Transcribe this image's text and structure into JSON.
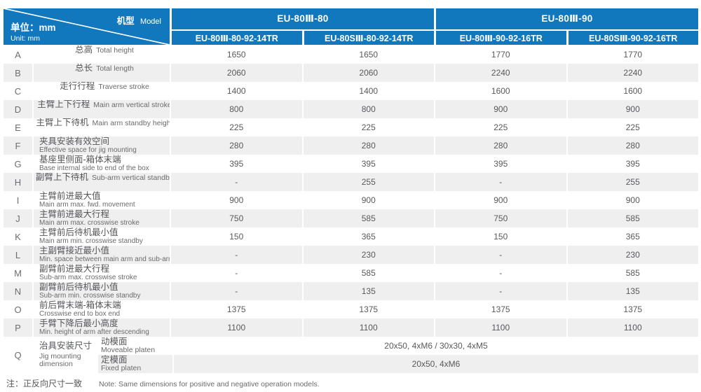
{
  "header": {
    "corner": {
      "model_zh": "机型",
      "model_en": "Model",
      "unit_zh": "单位：mm",
      "unit_en": "Unit: mm"
    },
    "groups": [
      {
        "label": "EU-80Ⅲ-80"
      },
      {
        "label": "EU-80Ⅲ-90"
      }
    ],
    "models": [
      "EU-80Ⅲ-80-92-14TR",
      "EU-80SⅢ-80-92-14TR",
      "EU-80Ⅲ-90-92-16TR",
      "EU-80SⅢ-90-92-16TR"
    ]
  },
  "rows": [
    {
      "letter": "A",
      "zh": "总高",
      "en": "Total height",
      "two": false,
      "values": [
        "1650",
        "1650",
        "1770",
        "1770"
      ]
    },
    {
      "letter": "B",
      "zh": "总长",
      "en": "Total length",
      "two": false,
      "values": [
        "2060",
        "2060",
        "2240",
        "2240"
      ]
    },
    {
      "letter": "C",
      "zh": "走行行程",
      "en": "Traverse stroke",
      "two": false,
      "values": [
        "1400",
        "1400",
        "1600",
        "1600"
      ]
    },
    {
      "letter": "D",
      "zh": "主臂上下行程",
      "en": "Main arm vertical stroke",
      "two": false,
      "values": [
        "800",
        "800",
        "900",
        "900"
      ]
    },
    {
      "letter": "E",
      "zh": "主臂上下待机",
      "en": "Main arm standby height",
      "two": false,
      "values": [
        "225",
        "225",
        "225",
        "225"
      ]
    },
    {
      "letter": "F",
      "zh": "夹具安装有效空间",
      "en": "Effective space for jig mounting",
      "two": true,
      "values": [
        "280",
        "280",
        "280",
        "280"
      ]
    },
    {
      "letter": "G",
      "zh": "基座里侧面-箱体末端",
      "en": "Base internal side to end of the box",
      "two": true,
      "values": [
        "395",
        "395",
        "395",
        "395"
      ]
    },
    {
      "letter": "H",
      "zh": "副臂上下待机",
      "en": "Sub-arm vertical standby",
      "two": false,
      "values": [
        "-",
        "255",
        "-",
        "255"
      ]
    },
    {
      "letter": "I",
      "zh": "主臂前进最大值",
      "en": "Main arm max. fwd. movement",
      "two": true,
      "values": [
        "900",
        "900",
        "900",
        "900"
      ]
    },
    {
      "letter": "J",
      "zh": "主臂前进最大行程",
      "en": "Main arm max. crosswise stroke",
      "two": true,
      "values": [
        "750",
        "585",
        "750",
        "585"
      ]
    },
    {
      "letter": "K",
      "zh": "主臂前后待机最小值",
      "en": "Main arm min. crosswise standby",
      "two": true,
      "values": [
        "150",
        "365",
        "150",
        "365"
      ]
    },
    {
      "letter": "L",
      "zh": "主副臂接近最小值",
      "en": "Min. space between main arm and sub-arm",
      "two": true,
      "values": [
        "-",
        "230",
        "-",
        "230"
      ]
    },
    {
      "letter": "M",
      "zh": "副臂前进最大行程",
      "en": "Sub-arm max. crosswise stroke",
      "two": true,
      "values": [
        "-",
        "585",
        "-",
        "585"
      ]
    },
    {
      "letter": "N",
      "zh": "副臂前后待机最小值",
      "en": "Sub-arm min. crosswise standby",
      "two": true,
      "values": [
        "-",
        "135",
        "-",
        "135"
      ]
    },
    {
      "letter": "O",
      "zh": "前后臂末端-箱体末端",
      "en": "Crosswise end to box end",
      "two": true,
      "values": [
        "1375",
        "1375",
        "1375",
        "1375"
      ]
    },
    {
      "letter": "P",
      "zh": "手臂下降后最小高度",
      "en": "Min. height of arm after descending",
      "two": true,
      "values": [
        "1100",
        "1100",
        "1100",
        "1100"
      ]
    }
  ],
  "jig": {
    "letter": "Q",
    "zh": "治具安装尺寸",
    "en": "Jig mounting dimension",
    "sub": [
      {
        "zh": "动模面",
        "en": "Moveable platen",
        "value": "20x50, 4xM6 / 30x30, 4xM5"
      },
      {
        "zh": "定模面",
        "en": "Fixed platen",
        "value": "20x50, 4xM6"
      }
    ]
  },
  "note": {
    "zh": "注：正反向尺寸一致",
    "en": "Note: Same dimensions for positive and negative operation models."
  },
  "colors": {
    "header_blue": "#1278be",
    "alt_row_gray": "#efeff0",
    "text_gray": "#58595b",
    "header_text": "#ffffff"
  }
}
